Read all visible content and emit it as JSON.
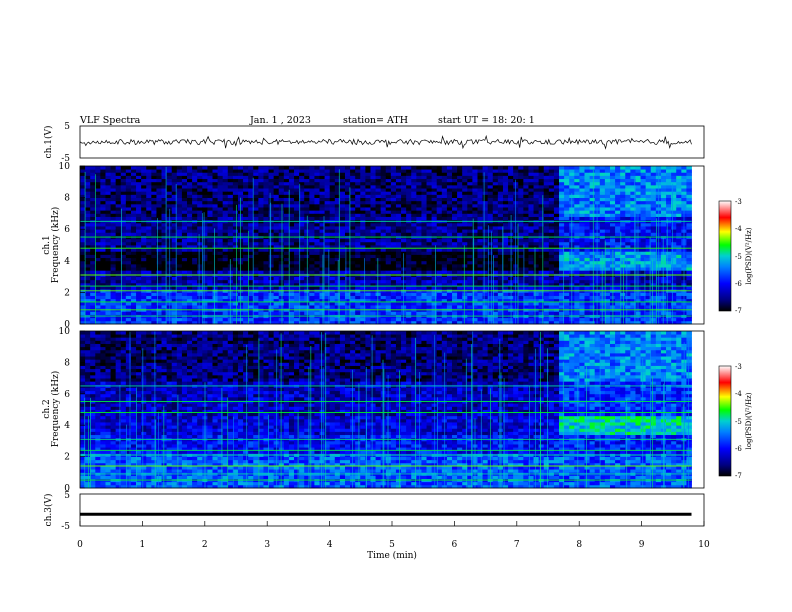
{
  "header": {
    "title": "VLF  Spectra",
    "date": "Jan.  1  , 2023",
    "station": "station= ATH",
    "start": "start  UT  =    18: 20: 1"
  },
  "panels": {
    "ch1v_label": "ch.1(V)",
    "ch1_label": "ch.1",
    "ch2_label": "ch.2",
    "ch3v_label": "ch.3(V)",
    "freq_label": "Frequency  (kHz)",
    "colorbar_label": "log(PSD)(V²/Hz)"
  },
  "chart_data": [
    {
      "type": "line",
      "name": "ch1-waveform",
      "ylabel": "ch.1(V)",
      "ylim": [
        -5,
        5
      ],
      "yticks": [
        "5",
        "-5"
      ],
      "xlim": [
        0,
        10
      ],
      "approx_level": 0,
      "approx_noise_amplitude": 0.8
    },
    {
      "type": "heatmap",
      "name": "ch1-spectrogram",
      "ylabel": "Frequency  (kHz)",
      "ylim": [
        0,
        10
      ],
      "yticks": [
        "0",
        "2",
        "4",
        "6",
        "8",
        "10"
      ],
      "xlim": [
        0,
        9.8
      ],
      "colorbar": {
        "ticks": [
          "-3",
          "-4",
          "-5",
          "-6",
          "-7"
        ],
        "range": [
          -7,
          -3
        ]
      },
      "regime_change_min": 7.65,
      "approx_levels": [
        {
          "fmin": 0,
          "fmax": 2.2,
          "before": -5.8,
          "after": -5.8
        },
        {
          "fmin": 2.2,
          "fmax": 3.5,
          "before": -6.4,
          "after": -6.3
        },
        {
          "fmin": 3.5,
          "fmax": 4.6,
          "before": -7.0,
          "after": -5.3
        },
        {
          "fmin": 4.6,
          "fmax": 6.8,
          "before": -6.5,
          "after": -6.0
        },
        {
          "fmin": 6.8,
          "fmax": 10,
          "before": -6.6,
          "after": -5.4
        }
      ]
    },
    {
      "type": "heatmap",
      "name": "ch2-spectrogram",
      "ylabel": "Frequency  (kHz)",
      "ylim": [
        0,
        10
      ],
      "yticks": [
        "0",
        "2",
        "4",
        "6",
        "8",
        "10"
      ],
      "xlim": [
        0,
        9.8
      ],
      "colorbar": {
        "ticks": [
          "-3",
          "-4",
          "-5",
          "-6",
          "-7"
        ],
        "range": [
          -7,
          -3
        ]
      },
      "regime_change_min": 7.65,
      "approx_levels": [
        {
          "fmin": 0,
          "fmax": 2.2,
          "before": -5.6,
          "after": -5.6
        },
        {
          "fmin": 2.2,
          "fmax": 3.5,
          "before": -6.0,
          "after": -5.9
        },
        {
          "fmin": 3.5,
          "fmax": 4.6,
          "before": -6.2,
          "after": -5.0
        },
        {
          "fmin": 4.6,
          "fmax": 6.8,
          "before": -6.3,
          "after": -5.8
        },
        {
          "fmin": 6.8,
          "fmax": 10,
          "before": -6.6,
          "after": -5.4
        }
      ]
    },
    {
      "type": "line",
      "name": "ch3-waveform",
      "ylabel": "ch.3(V)",
      "ylim": [
        -5,
        5
      ],
      "yticks": [
        "5",
        "-5"
      ],
      "xlim": [
        0,
        10
      ],
      "approx_level": -1.3
    }
  ],
  "xaxis": {
    "label": "Time  (min)",
    "ticks": [
      "0",
      "1",
      "2",
      "3",
      "4",
      "5",
      "6",
      "7",
      "8",
      "9",
      "10"
    ],
    "range": [
      0,
      10
    ]
  }
}
